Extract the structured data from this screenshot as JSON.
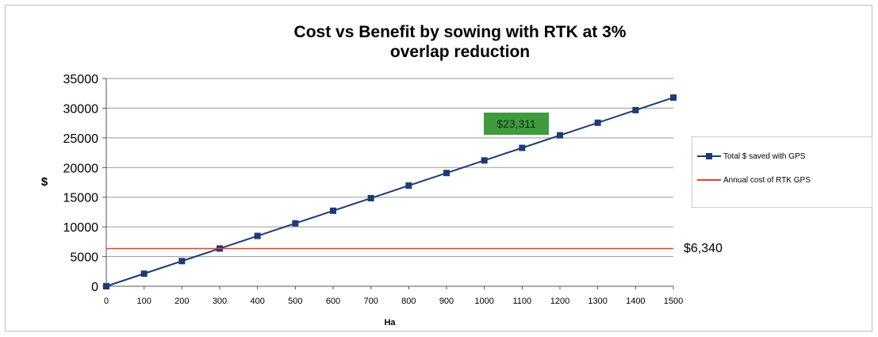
{
  "chart_data": {
    "type": "line",
    "title_line1": "Cost vs Benefit by sowing with RTK at 3%",
    "title_line2": "overlap reduction",
    "xlabel": "Ha",
    "ylabel": "$",
    "x": [
      0,
      100,
      200,
      300,
      400,
      500,
      600,
      700,
      800,
      900,
      1000,
      1100,
      1200,
      1300,
      1400,
      1500
    ],
    "xlim": [
      0,
      1500
    ],
    "ylim": [
      0,
      35000
    ],
    "y_ticks": [
      0,
      5000,
      10000,
      15000,
      20000,
      25000,
      30000,
      35000
    ],
    "grid": true,
    "legend_position": "right",
    "series": [
      {
        "name": "Total $ saved with GPS",
        "color": "#1f3b73",
        "marker": "square",
        "values": [
          0,
          2120,
          4240,
          6360,
          8480,
          10600,
          12720,
          14840,
          16960,
          19080,
          21200,
          23311,
          25430,
          27550,
          29670,
          31790
        ]
      },
      {
        "name": "Annual cost of RTK GPS",
        "color": "#e8402a",
        "marker": "none",
        "values": [
          6340,
          6340,
          6340,
          6340,
          6340,
          6340,
          6340,
          6340,
          6340,
          6340,
          6340,
          6340,
          6340,
          6340,
          6340,
          6340
        ]
      }
    ],
    "annotations": {
      "callout": "$23,311",
      "callout_color": "#3f9b3f",
      "line_value": "$6,340"
    }
  }
}
